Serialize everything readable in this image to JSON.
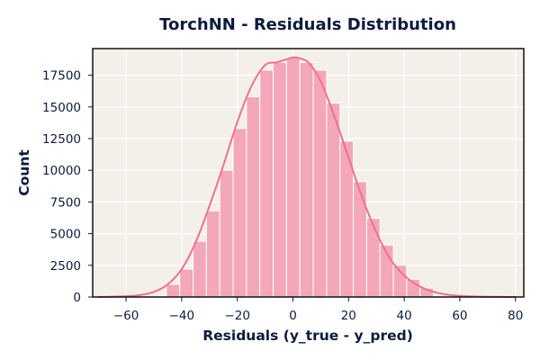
{
  "chart_data": {
    "type": "histogram",
    "title": "TorchNN - Residuals Distribution",
    "xlabel": "Residuals (y_true - y_pred)",
    "ylabel": "Count",
    "xlim": [
      -72,
      83
    ],
    "ylim": [
      0,
      19600
    ],
    "xticks": [
      -60,
      -40,
      -20,
      0,
      20,
      40,
      60,
      80
    ],
    "yticks": [
      0,
      2500,
      5000,
      7500,
      10000,
      12500,
      15000,
      17500
    ],
    "grid": true,
    "bin_width": 4.8,
    "bins": [
      {
        "start": -45.5,
        "count": 1000
      },
      {
        "start": -40.7,
        "count": 2200
      },
      {
        "start": -35.9,
        "count": 4400
      },
      {
        "start": -31.1,
        "count": 6800
      },
      {
        "start": -26.3,
        "count": 10000
      },
      {
        "start": -21.5,
        "count": 13300
      },
      {
        "start": -16.7,
        "count": 15800
      },
      {
        "start": -11.9,
        "count": 17900
      },
      {
        "start": -7.1,
        "count": 18500
      },
      {
        "start": -2.3,
        "count": 18900
      },
      {
        "start": 2.5,
        "count": 18500
      },
      {
        "start": 7.3,
        "count": 17900
      },
      {
        "start": 12.1,
        "count": 15300
      },
      {
        "start": 16.9,
        "count": 12300
      },
      {
        "start": 21.7,
        "count": 9100
      },
      {
        "start": 26.5,
        "count": 6200
      },
      {
        "start": 31.3,
        "count": 4100
      },
      {
        "start": 36.1,
        "count": 2500
      },
      {
        "start": 40.9,
        "count": 1400
      },
      {
        "start": 45.7,
        "count": 700
      }
    ],
    "kde": {
      "x": [
        -70,
        -65,
        -60,
        -55,
        -50,
        -45,
        -40,
        -35,
        -30,
        -25,
        -20,
        -15,
        -10,
        -6,
        -3,
        0,
        3,
        6,
        10,
        15,
        20,
        25,
        30,
        35,
        40,
        45,
        50,
        55,
        60,
        65,
        70,
        75,
        80
      ],
      "y": [
        0,
        20,
        60,
        150,
        400,
        1000,
        2200,
        4300,
        7200,
        10400,
        13800,
        16600,
        18300,
        18500,
        18700,
        18900,
        18800,
        18400,
        17000,
        14200,
        11000,
        7800,
        5100,
        3000,
        1700,
        900,
        450,
        200,
        90,
        40,
        15,
        5,
        0
      ]
    },
    "colors": {
      "bar_fill": "#f4a7b9",
      "bar_edge": "#ffffff",
      "kde_line": "#f0708d",
      "plot_bg": "#f3f0ea"
    }
  }
}
